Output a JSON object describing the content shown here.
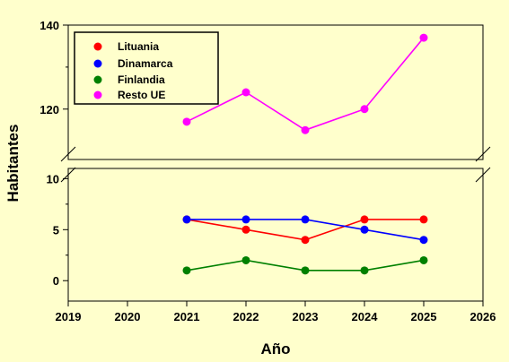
{
  "chart_data": {
    "type": "line",
    "title": "",
    "xlabel": "Año",
    "ylabel": "Habitantes",
    "xlim": [
      2019,
      2026
    ],
    "x_ticks": [
      2019,
      2020,
      2021,
      2022,
      2023,
      2024,
      2025,
      2026
    ],
    "broken_y_axis": true,
    "y_segments": [
      {
        "ylim": [
          -2,
          11
        ],
        "ticks": [
          0,
          5,
          10
        ]
      },
      {
        "ylim": [
          108,
          140
        ],
        "ticks": [
          120,
          140
        ]
      }
    ],
    "legend_position": "top-left",
    "grid": false,
    "background_color": "#ffffcc",
    "x": [
      2021,
      2022,
      2023,
      2024,
      2025
    ],
    "series": [
      {
        "name": "Lituania",
        "color": "#ff0000",
        "values": [
          6,
          5,
          4,
          6,
          6
        ]
      },
      {
        "name": "Dinamarca",
        "color": "#0000ff",
        "values": [
          6,
          6,
          6,
          5,
          4
        ]
      },
      {
        "name": "Finlandia",
        "color": "#008000",
        "values": [
          1,
          2,
          1,
          1,
          2
        ]
      },
      {
        "name": "Resto UE",
        "color": "#ff00ff",
        "values": [
          117,
          124,
          115,
          120,
          137
        ]
      }
    ]
  }
}
